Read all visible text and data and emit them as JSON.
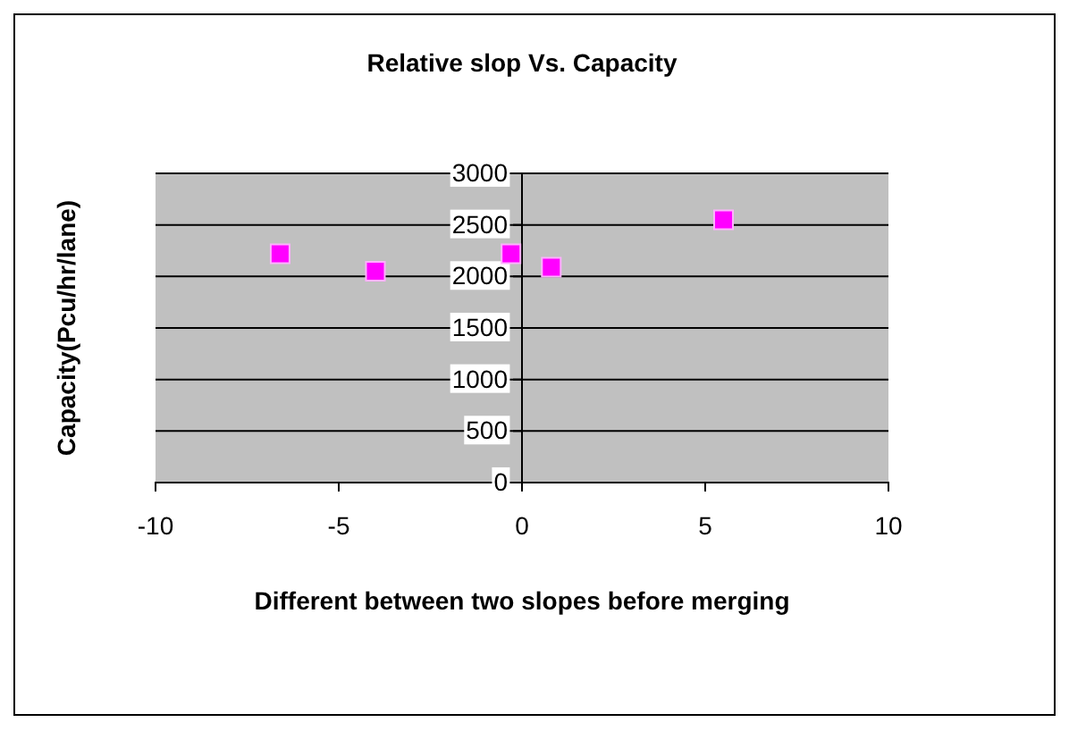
{
  "chart_data": {
    "type": "scatter",
    "title": "Relative slop Vs. Capacity",
    "xlabel": "Different between two slopes before merging",
    "ylabel": "Capacity(Pcu/hr/lane)",
    "x": [
      -6.6,
      -4.0,
      -0.3,
      0.8,
      5.5
    ],
    "series": [
      {
        "color": "#ff00ff",
        "values": [
          2220,
          2050,
          2220,
          2090,
          2550
        ]
      }
    ],
    "xlim": [
      -10,
      10
    ],
    "xticks": [
      -10,
      -5,
      0,
      5,
      10
    ],
    "ylim": [
      0,
      3000
    ],
    "yticks": [
      0,
      500,
      1000,
      1500,
      2000,
      2500,
      3000
    ],
    "grid": "y",
    "marker": "square"
  }
}
